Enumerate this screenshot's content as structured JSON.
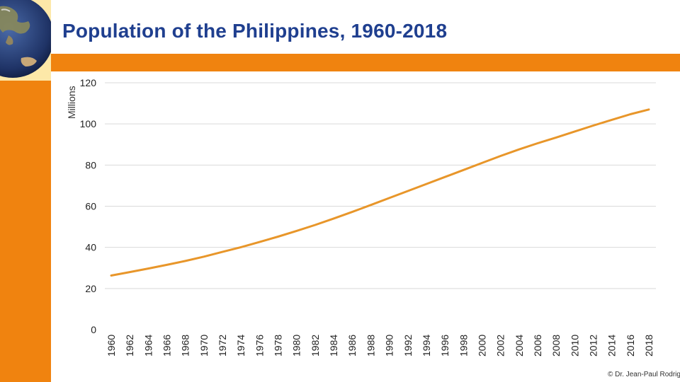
{
  "slide": {
    "title": "Population of the Philippines, 1960-2018",
    "copyright": "© Dr. Jean-Paul Rodrig",
    "accent_color": "#f0830f",
    "title_color": "#1f3f8f",
    "logo_icon": "globe-icon"
  },
  "chart_data": {
    "type": "line",
    "title": "",
    "xlabel": "",
    "ylabel": "Millions",
    "ylim": [
      0,
      120
    ],
    "yticks": [
      0,
      20,
      40,
      60,
      80,
      100,
      120
    ],
    "grid": true,
    "line_color": "#e8962a",
    "x": [
      1960,
      1962,
      1964,
      1966,
      1968,
      1970,
      1972,
      1974,
      1976,
      1978,
      1980,
      1982,
      1984,
      1986,
      1988,
      1990,
      1992,
      1994,
      1996,
      1998,
      2000,
      2002,
      2004,
      2006,
      2008,
      2010,
      2012,
      2014,
      2016,
      2018
    ],
    "series": [
      {
        "values": [
          26.3,
          28.0,
          29.7,
          31.5,
          33.4,
          35.5,
          37.8,
          40.1,
          42.6,
          45.2,
          48.0,
          50.9,
          54.0,
          57.2,
          60.6,
          64.0,
          67.4,
          70.8,
          74.2,
          77.6,
          81.0,
          84.4,
          87.6,
          90.6,
          93.4,
          96.3,
          99.2,
          102.0,
          104.7,
          107.0
        ]
      }
    ]
  }
}
